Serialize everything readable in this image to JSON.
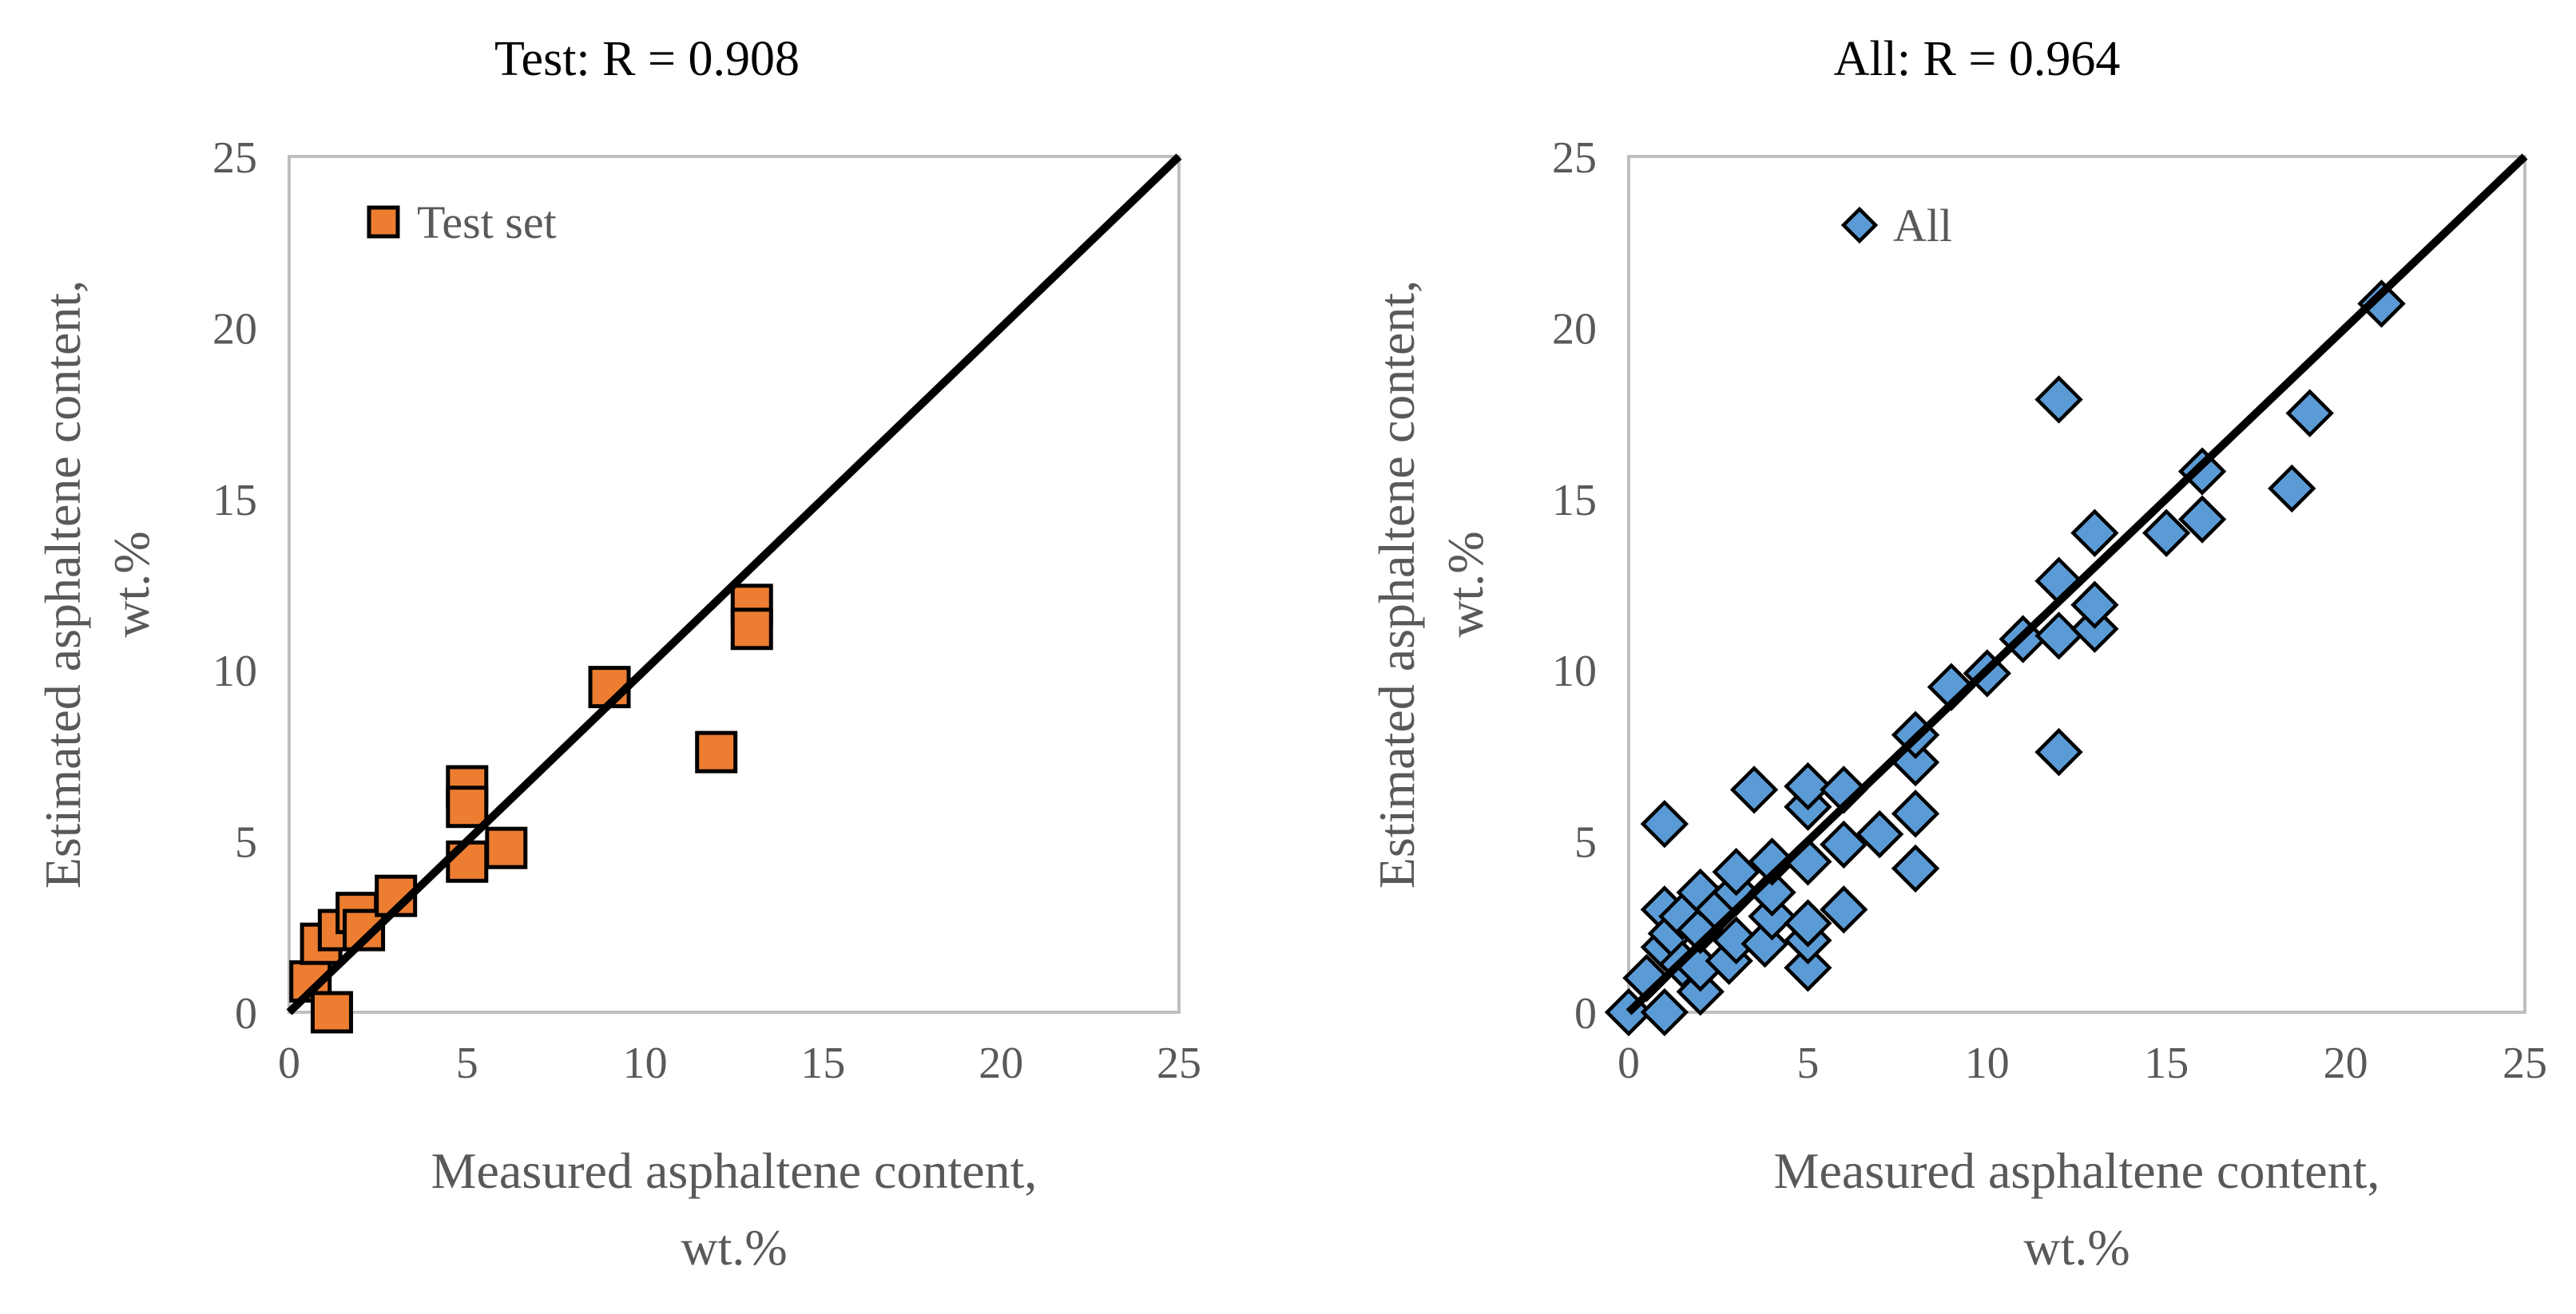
{
  "chart_data": [
    {
      "type": "scatter",
      "title": "Test: R = 0.908",
      "xlabel": [
        "Measured asphaltene content,",
        "wt.%"
      ],
      "ylabel": [
        "Estimated asphaltene content,",
        "wt.%"
      ],
      "xlim": [
        0,
        25
      ],
      "ylim": [
        0,
        25
      ],
      "xticks": [
        "0",
        "5",
        "10",
        "15",
        "20",
        "25"
      ],
      "yticks": [
        "0",
        "5",
        "10",
        "15",
        "20",
        "25"
      ],
      "grid": false,
      "legend_position": "top-left",
      "fit_line": {
        "from": [
          0,
          0
        ],
        "to": [
          25,
          25
        ]
      },
      "series": [
        {
          "name": "Test set",
          "marker": "square",
          "color": "#ED7D31",
          "points": [
            [
              0.6,
              0.9
            ],
            [
              0.9,
              2.0
            ],
            [
              1.2,
              0.0
            ],
            [
              1.4,
              2.4
            ],
            [
              1.9,
              2.9
            ],
            [
              2.1,
              2.4
            ],
            [
              3.0,
              3.4
            ],
            [
              5.0,
              6.6
            ],
            [
              5.0,
              6.0
            ],
            [
              5.0,
              4.4
            ],
            [
              6.1,
              4.8
            ],
            [
              9.0,
              9.5
            ],
            [
              12.0,
              7.6
            ],
            [
              13.0,
              11.9
            ],
            [
              13.0,
              11.2
            ]
          ]
        }
      ]
    },
    {
      "type": "scatter",
      "title": "All: R = 0.964",
      "xlabel": [
        "Measured asphaltene content,",
        "wt.%"
      ],
      "ylabel": [
        "Estimated asphaltene content,",
        "wt.%"
      ],
      "xlim": [
        0,
        25
      ],
      "ylim": [
        0,
        25
      ],
      "xticks": [
        "0",
        "5",
        "10",
        "15",
        "20",
        "25"
      ],
      "yticks": [
        "0",
        "5",
        "10",
        "15",
        "20",
        "25"
      ],
      "grid": false,
      "legend_position": "top-left",
      "fit_line": {
        "from": [
          0,
          0
        ],
        "to": [
          25,
          25
        ]
      },
      "series": [
        {
          "name": "All",
          "marker": "diamond",
          "color": "#5B9BD5",
          "points": [
            [
              0.0,
              0.0
            ],
            [
              0.5,
              1.0
            ],
            [
              1.0,
              0.0
            ],
            [
              1.0,
              1.9
            ],
            [
              1.0,
              3.0
            ],
            [
              1.0,
              5.5
            ],
            [
              1.2,
              2.3
            ],
            [
              1.5,
              1.4
            ],
            [
              1.5,
              2.8
            ],
            [
              2.0,
              0.6
            ],
            [
              2.0,
              1.3
            ],
            [
              2.0,
              2.4
            ],
            [
              2.0,
              3.5
            ],
            [
              2.5,
              3.0
            ],
            [
              2.8,
              1.5
            ],
            [
              3.0,
              2.1
            ],
            [
              3.0,
              3.5
            ],
            [
              3.0,
              4.1
            ],
            [
              3.5,
              6.5
            ],
            [
              3.8,
              2.0
            ],
            [
              4.0,
              2.8
            ],
            [
              4.0,
              3.5
            ],
            [
              4.0,
              4.4
            ],
            [
              5.0,
              1.3
            ],
            [
              5.0,
              2.1
            ],
            [
              5.0,
              2.6
            ],
            [
              5.0,
              4.4
            ],
            [
              5.0,
              6.0
            ],
            [
              5.0,
              6.6
            ],
            [
              6.0,
              3.0
            ],
            [
              6.0,
              4.9
            ],
            [
              6.0,
              6.5
            ],
            [
              7.0,
              5.2
            ],
            [
              8.0,
              4.2
            ],
            [
              8.0,
              5.8
            ],
            [
              8.0,
              7.3
            ],
            [
              8.0,
              8.1
            ],
            [
              9.0,
              9.5
            ],
            [
              10.0,
              9.9
            ],
            [
              11.0,
              10.9
            ],
            [
              12.0,
              7.6
            ],
            [
              12.0,
              11.0
            ],
            [
              12.0,
              12.6
            ],
            [
              12.0,
              17.9
            ],
            [
              13.0,
              11.2
            ],
            [
              13.0,
              11.9
            ],
            [
              13.0,
              14.0
            ],
            [
              15.0,
              14.0
            ],
            [
              16.0,
              14.4
            ],
            [
              16.0,
              15.8
            ],
            [
              18.5,
              15.3
            ],
            [
              19.0,
              17.5
            ],
            [
              21.0,
              20.7
            ]
          ]
        }
      ]
    }
  ]
}
